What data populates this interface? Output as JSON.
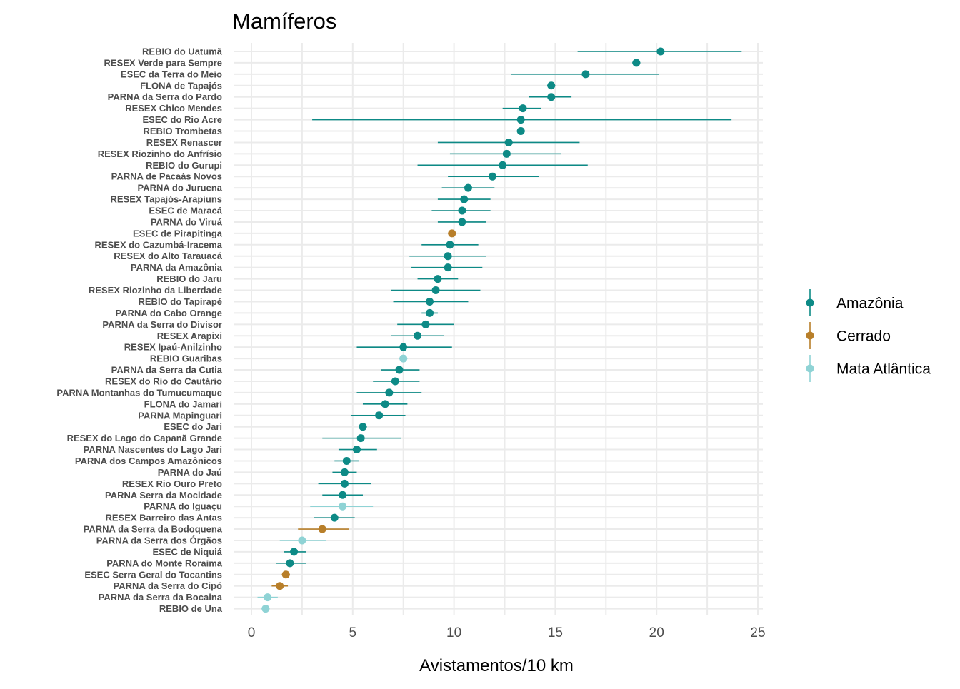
{
  "chart_data": {
    "type": "scatter",
    "title": "Mamíferos",
    "xlabel": "Avistamentos/10 km",
    "ylabel": "",
    "xlim": [
      -0.8,
      25.3
    ],
    "xticks": [
      0,
      5,
      10,
      15,
      20,
      25
    ],
    "grid": true,
    "legend_position": "right",
    "legend": [
      {
        "name": "Amazônia",
        "color": "#0d8a86"
      },
      {
        "name": "Cerrado",
        "color": "#b87f2a"
      },
      {
        "name": "Mata Atlântica",
        "color": "#8fd3d5"
      }
    ],
    "points": [
      {
        "label": "REBIO do Uatumã",
        "group": "Amazônia",
        "value": 20.2,
        "low": 16.1,
        "high": 24.2
      },
      {
        "label": "RESEX Verde para Sempre",
        "group": "Amazônia",
        "value": 19.0,
        "low": 18.8,
        "high": 19.2
      },
      {
        "label": "ESEC da Terra do Meio",
        "group": "Amazônia",
        "value": 16.5,
        "low": 12.8,
        "high": 20.1
      },
      {
        "label": "FLONA de Tapajós",
        "group": "Amazônia",
        "value": 14.8,
        "low": 14.6,
        "high": 15.0
      },
      {
        "label": "PARNA da Serra do Pardo",
        "group": "Amazônia",
        "value": 14.8,
        "low": 13.7,
        "high": 15.8
      },
      {
        "label": "RESEX Chico Mendes",
        "group": "Amazônia",
        "value": 13.4,
        "low": 12.4,
        "high": 14.3
      },
      {
        "label": "ESEC do Rio Acre",
        "group": "Amazônia",
        "value": 13.3,
        "low": 3.0,
        "high": 23.7
      },
      {
        "label": "REBIO Trombetas",
        "group": "Amazônia",
        "value": 13.3,
        "low": 13.1,
        "high": 13.5
      },
      {
        "label": "RESEX Renascer",
        "group": "Amazônia",
        "value": 12.7,
        "low": 9.2,
        "high": 16.2
      },
      {
        "label": "RESEX Riozinho do Anfrísio",
        "group": "Amazônia",
        "value": 12.6,
        "low": 9.8,
        "high": 15.3
      },
      {
        "label": "REBIO do Gurupi",
        "group": "Amazônia",
        "value": 12.4,
        "low": 8.2,
        "high": 16.6
      },
      {
        "label": "PARNA de Pacaás Novos",
        "group": "Amazônia",
        "value": 11.9,
        "low": 9.7,
        "high": 14.2
      },
      {
        "label": "PARNA do Juruena",
        "group": "Amazônia",
        "value": 10.7,
        "low": 9.4,
        "high": 12.0
      },
      {
        "label": "RESEX Tapajós-Arapiuns",
        "group": "Amazônia",
        "value": 10.5,
        "low": 9.2,
        "high": 11.8
      },
      {
        "label": "ESEC de Maracá",
        "group": "Amazônia",
        "value": 10.4,
        "low": 8.9,
        "high": 11.8
      },
      {
        "label": "PARNA do Viruá",
        "group": "Amazônia",
        "value": 10.4,
        "low": 9.2,
        "high": 11.6
      },
      {
        "label": "ESEC de Pirapitinga",
        "group": "Cerrado",
        "value": 9.9,
        "low": 9.7,
        "high": 10.1
      },
      {
        "label": "RESEX do Cazumbá-Iracema",
        "group": "Amazônia",
        "value": 9.8,
        "low": 8.4,
        "high": 11.2
      },
      {
        "label": "RESEX do Alto Tarauacá",
        "group": "Amazônia",
        "value": 9.7,
        "low": 7.8,
        "high": 11.6
      },
      {
        "label": "PARNA da Amazônia",
        "group": "Amazônia",
        "value": 9.7,
        "low": 7.9,
        "high": 11.4
      },
      {
        "label": "REBIO do Jaru",
        "group": "Amazônia",
        "value": 9.2,
        "low": 8.2,
        "high": 10.2
      },
      {
        "label": "RESEX Riozinho da Liberdade",
        "group": "Amazônia",
        "value": 9.1,
        "low": 6.9,
        "high": 11.3
      },
      {
        "label": "REBIO do Tapirapé",
        "group": "Amazônia",
        "value": 8.8,
        "low": 7.0,
        "high": 10.7
      },
      {
        "label": "PARNA do Cabo Orange",
        "group": "Amazônia",
        "value": 8.8,
        "low": 8.4,
        "high": 9.2
      },
      {
        "label": "PARNA da Serra do Divisor",
        "group": "Amazônia",
        "value": 8.6,
        "low": 7.2,
        "high": 10.0
      },
      {
        "label": "RESEX Arapixi",
        "group": "Amazônia",
        "value": 8.2,
        "low": 6.9,
        "high": 9.5
      },
      {
        "label": "RESEX Ipaú-Anilzinho",
        "group": "Amazônia",
        "value": 7.5,
        "low": 5.2,
        "high": 9.9
      },
      {
        "label": "REBIO Guaribas",
        "group": "Mata Atlântica",
        "value": 7.5,
        "low": 7.3,
        "high": 7.7
      },
      {
        "label": "PARNA da Serra da Cutia",
        "group": "Amazônia",
        "value": 7.3,
        "low": 6.4,
        "high": 8.3
      },
      {
        "label": "RESEX do Rio do Cautário",
        "group": "Amazônia",
        "value": 7.1,
        "low": 6.0,
        "high": 8.3
      },
      {
        "label": "PARNA Montanhas do Tumucumaque",
        "group": "Amazônia",
        "value": 6.8,
        "low": 5.2,
        "high": 8.4
      },
      {
        "label": "FLONA do Jamari",
        "group": "Amazônia",
        "value": 6.6,
        "low": 5.5,
        "high": 7.7
      },
      {
        "label": "PARNA Mapinguari",
        "group": "Amazônia",
        "value": 6.3,
        "low": 4.9,
        "high": 7.6
      },
      {
        "label": "ESEC do Jari",
        "group": "Amazônia",
        "value": 5.5,
        "low": 5.3,
        "high": 5.7
      },
      {
        "label": "RESEX do Lago do Capanã Grande",
        "group": "Amazônia",
        "value": 5.4,
        "low": 3.5,
        "high": 7.4
      },
      {
        "label": "PARNA Nascentes do Lago Jari",
        "group": "Amazônia",
        "value": 5.2,
        "low": 4.3,
        "high": 6.2
      },
      {
        "label": "PARNA dos Campos Amazônicos",
        "group": "Amazônia",
        "value": 4.7,
        "low": 4.1,
        "high": 5.3
      },
      {
        "label": "PARNA do Jaú",
        "group": "Amazônia",
        "value": 4.6,
        "low": 4.0,
        "high": 5.2
      },
      {
        "label": "RESEX Rio Ouro Preto",
        "group": "Amazônia",
        "value": 4.6,
        "low": 3.3,
        "high": 5.9
      },
      {
        "label": "PARNA Serra da Mocidade",
        "group": "Amazônia",
        "value": 4.5,
        "low": 3.5,
        "high": 5.5
      },
      {
        "label": "PARNA do Iguaçu",
        "group": "Mata Atlântica",
        "value": 4.5,
        "low": 2.9,
        "high": 6.0
      },
      {
        "label": "RESEX Barreiro das Antas",
        "group": "Amazônia",
        "value": 4.1,
        "low": 3.1,
        "high": 5.1
      },
      {
        "label": "PARNA da Serra da Bodoquena",
        "group": "Cerrado",
        "value": 3.5,
        "low": 2.3,
        "high": 4.8
      },
      {
        "label": "PARNA da Serra dos Órgãos",
        "group": "Mata Atlântica",
        "value": 2.5,
        "low": 1.4,
        "high": 3.7
      },
      {
        "label": "ESEC de Niquiá",
        "group": "Amazônia",
        "value": 2.1,
        "low": 1.6,
        "high": 2.7
      },
      {
        "label": "PARNA do Monte Roraima",
        "group": "Amazônia",
        "value": 1.9,
        "low": 1.2,
        "high": 2.7
      },
      {
        "label": "ESEC Serra Geral do Tocantins",
        "group": "Cerrado",
        "value": 1.7,
        "low": 1.5,
        "high": 1.9
      },
      {
        "label": "PARNA da Serra do Cipó",
        "group": "Cerrado",
        "value": 1.4,
        "low": 1.0,
        "high": 1.8
      },
      {
        "label": "PARNA da Serra da Bocaina",
        "group": "Mata Atlântica",
        "value": 0.8,
        "low": 0.3,
        "high": 1.3
      },
      {
        "label": "REBIO de Una",
        "group": "Mata Atlântica",
        "value": 0.7,
        "low": 0.5,
        "high": 0.9
      }
    ]
  }
}
